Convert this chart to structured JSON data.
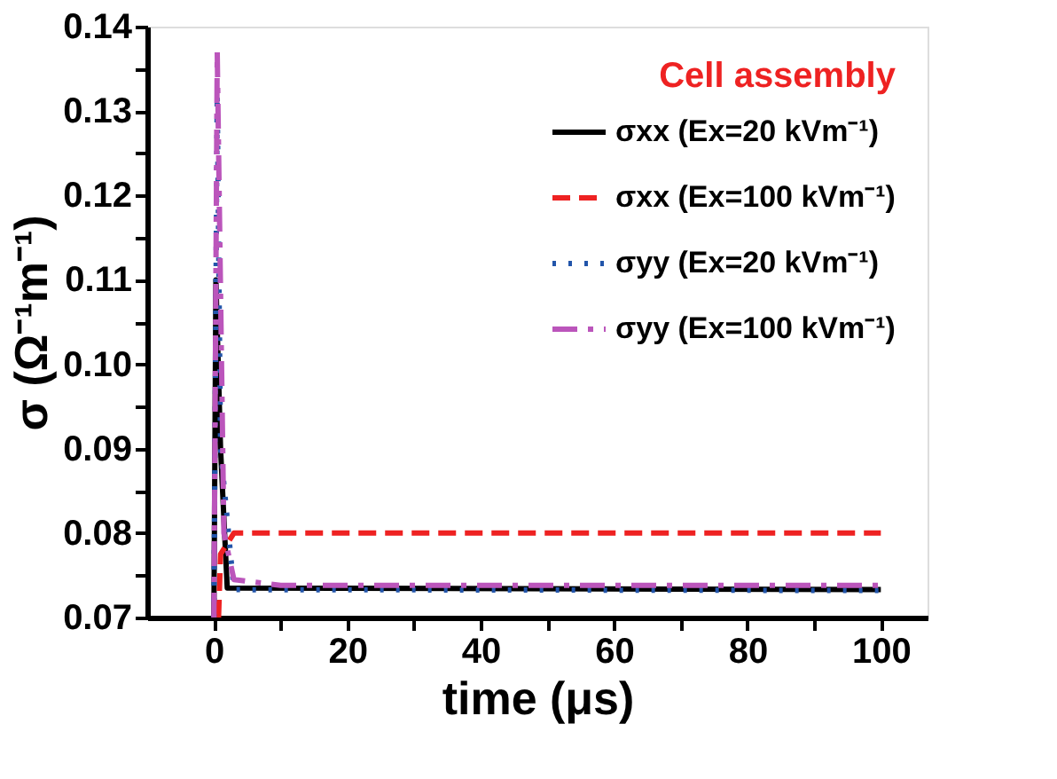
{
  "chart_data": {
    "type": "line",
    "xlabel": "time (μs)",
    "ylabel": "σ (Ω⁻¹m⁻¹)",
    "legend_title": "Cell assembly",
    "xlim": [
      -10,
      107
    ],
    "ylim": [
      0.07,
      0.14
    ],
    "xticks": [
      0,
      {
        "value": 10,
        "label": null
      },
      20,
      {
        "value": 30,
        "label": null
      },
      40,
      {
        "value": 50,
        "label": null
      },
      60,
      {
        "value": 70,
        "label": null
      },
      80,
      {
        "value": 90,
        "label": null
      },
      100
    ],
    "yticks": [
      0.07,
      {
        "value": 0.075,
        "label": null
      },
      0.08,
      {
        "value": 0.085,
        "label": null
      },
      0.09,
      {
        "value": 0.095,
        "label": null
      },
      {
        "value": 0.1,
        "label": "0.10"
      },
      {
        "value": 0.105,
        "label": null
      },
      0.11,
      {
        "value": 0.115,
        "label": null
      },
      0.12,
      {
        "value": 0.125,
        "label": null
      },
      0.13,
      {
        "value": 0.135,
        "label": null
      },
      0.14
    ],
    "grid": false,
    "legend": "top right",
    "marker": "none",
    "series": [
      {
        "name": "σxx (Ex=20 kVm⁻¹)",
        "color": "#000000",
        "line_style": "solid",
        "x": [
          0,
          0.3,
          1,
          2,
          100
        ],
        "values": [
          0.07,
          0.11,
          0.09,
          0.0735,
          0.0733
        ]
      },
      {
        "name": "σxx (Ex=100 kVm⁻¹)",
        "color": "#ee2222",
        "line_style": "dashed",
        "x": [
          0.7,
          1,
          3,
          100
        ],
        "values": [
          0.07,
          0.0775,
          0.08,
          0.08
        ]
      },
      {
        "name": "σyy (Ex=20 kVm⁻¹)",
        "color": "#2255aa",
        "line_style": "dotted",
        "x": [
          0,
          0.5,
          1,
          3,
          100
        ],
        "values": [
          0.07,
          0.132,
          0.09,
          0.0733,
          0.0732
        ]
      },
      {
        "name": "σyy (Ex=100 kVm⁻¹)",
        "color": "#bb55bb",
        "line_style": "dashdot",
        "x": [
          0,
          0.5,
          1.5,
          3,
          10,
          100
        ],
        "values": [
          0.07,
          0.137,
          0.08,
          0.0745,
          0.0738,
          0.0738
        ]
      }
    ]
  }
}
